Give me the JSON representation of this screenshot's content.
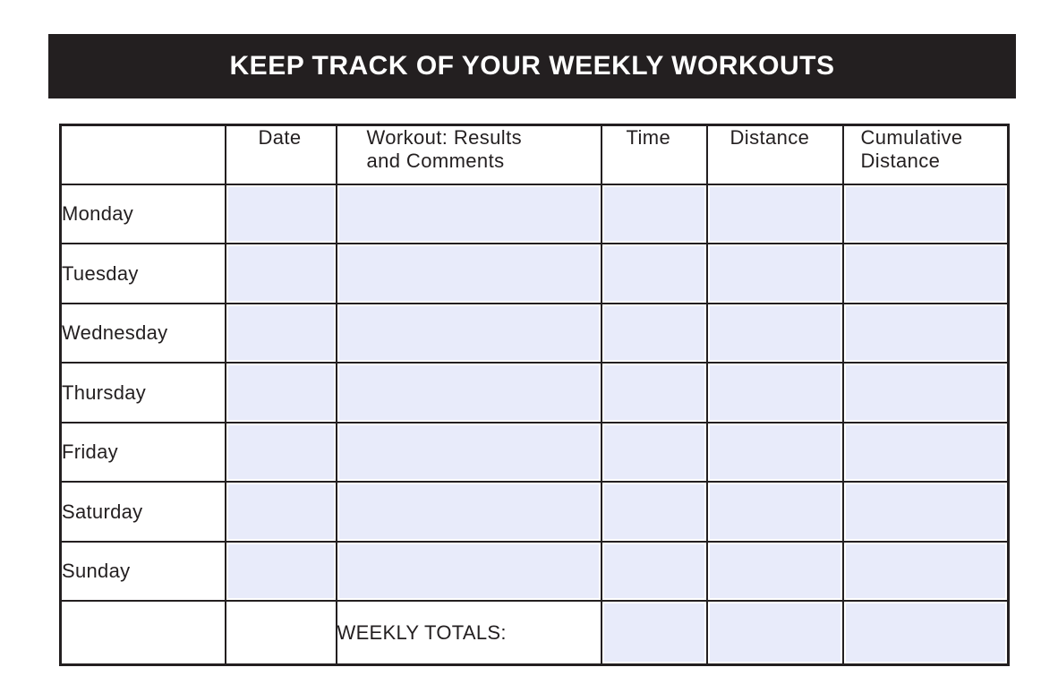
{
  "title": "KEEP TRACK OF YOUR WEEKLY WORKOUTS",
  "columns": {
    "day": "",
    "date": "Date",
    "workout_line1": "Workout: Results",
    "workout_line2": "and Comments",
    "time": "Time",
    "distance": "Distance",
    "cumulative_line1": "Cumulative",
    "cumulative_line2": "Distance"
  },
  "days": [
    "Monday",
    "Tuesday",
    "Wednesday",
    "Thursday",
    "Friday",
    "Saturday",
    "Sunday"
  ],
  "totals_label": "WEEKLY TOTALS:",
  "colors": {
    "banner": "#231f20",
    "fill": "#e8ebfa"
  }
}
